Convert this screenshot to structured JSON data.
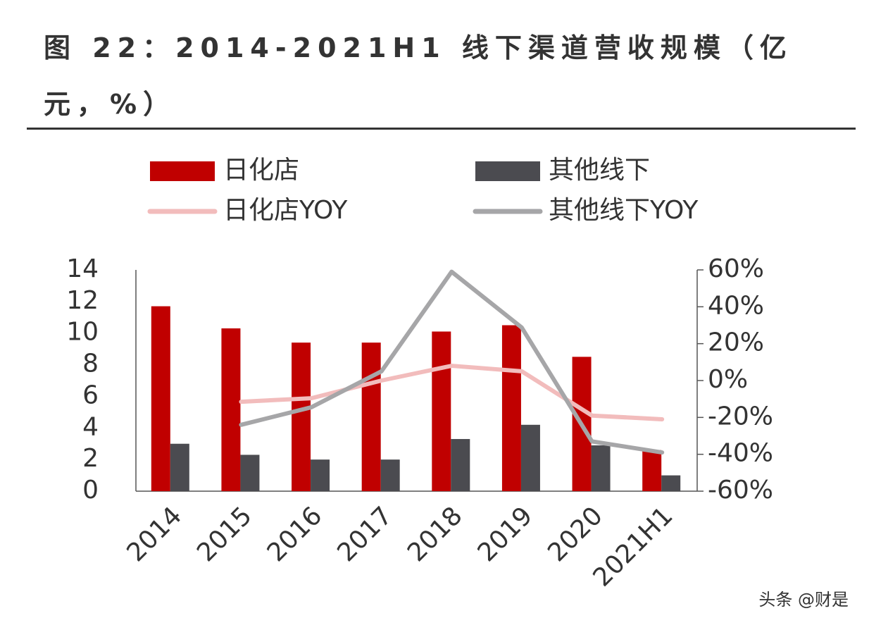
{
  "chart_data": {
    "type": "bar-line",
    "title": "图 22：2014-2021H1 线下渠道营收规模（亿元，%）",
    "categories": [
      "2014",
      "2015",
      "2016",
      "2017",
      "2018",
      "2019",
      "2020",
      "2021H1"
    ],
    "series": [
      {
        "name": "日化店",
        "type": "bar",
        "color": "#c00000",
        "values": [
          11.7,
          10.3,
          9.4,
          9.4,
          10.1,
          10.5,
          8.5,
          2.6
        ]
      },
      {
        "name": "其他线下",
        "type": "bar",
        "color": "#4b4b50",
        "values": [
          3.0,
          2.3,
          2.0,
          2.0,
          3.3,
          4.2,
          2.9,
          1.0
        ]
      },
      {
        "name": "日化店YOY",
        "type": "line",
        "axis": "y2",
        "color": "#f2bcbc",
        "values": [
          null,
          -11.5,
          -9.6,
          0,
          8,
          5,
          -19,
          -21
        ]
      },
      {
        "name": "其他线下YOY",
        "type": "line",
        "axis": "y2",
        "color": "#a6a6a8",
        "values": [
          null,
          -24,
          -14.5,
          5,
          59,
          28.7,
          -33,
          -39
        ]
      }
    ],
    "ylim": [
      0,
      14
    ],
    "yticks": [
      0,
      2,
      4,
      6,
      8,
      10,
      12,
      14
    ],
    "y2lim": [
      -60,
      60
    ],
    "y2ticks": [
      {
        "value": -60,
        "label": "-60%"
      },
      {
        "value": -40,
        "label": "-40%"
      },
      {
        "value": -20,
        "label": "-20%"
      },
      {
        "value": 0,
        "label": "0%"
      },
      {
        "value": 20,
        "label": "20%"
      },
      {
        "value": 40,
        "label": "40%"
      },
      {
        "value": 60,
        "label": "60%"
      }
    ],
    "grid": false,
    "watermark": "头条 @财是"
  }
}
